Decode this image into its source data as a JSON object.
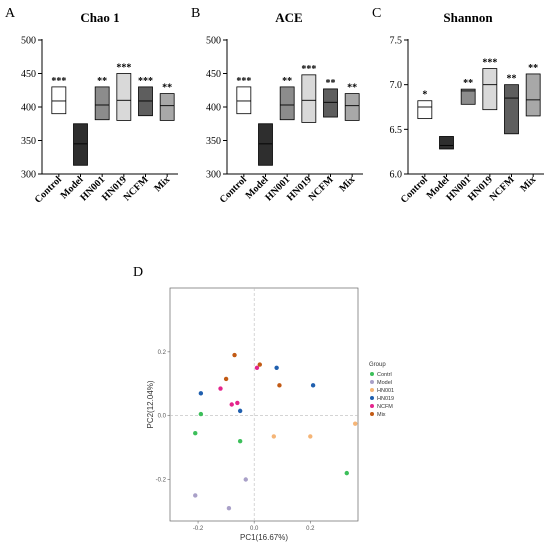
{
  "panel_labels": [
    "A",
    "B",
    "C",
    "D"
  ],
  "chart_data": [
    {
      "type": "box",
      "title": "Chao 1",
      "categories": [
        "Control",
        "Model",
        "HN001",
        "HN019",
        "NCFM",
        "Mix"
      ],
      "ylim": [
        300,
        500
      ],
      "yticks": [
        "300",
        "350",
        "400",
        "450",
        "500"
      ],
      "boxes": [
        {
          "low": 390,
          "median": 409,
          "high": 430,
          "fill": "#ffffff"
        },
        {
          "low": 313,
          "median": 345,
          "high": 375,
          "fill": "#2e2e2e"
        },
        {
          "low": 381,
          "median": 403,
          "high": 430,
          "fill": "#8c8c8c"
        },
        {
          "low": 380,
          "median": 410,
          "high": 450,
          "fill": "#d9d9d9"
        },
        {
          "low": 387,
          "median": 409,
          "high": 430,
          "fill": "#5e5e5e"
        },
        {
          "low": 380,
          "median": 402,
          "high": 420,
          "fill": "#a8a8a8"
        }
      ],
      "significance": [
        "***",
        "",
        "**",
        "***",
        "***",
        "**"
      ]
    },
    {
      "type": "box",
      "title": "ACE",
      "categories": [
        "Control",
        "Model",
        "HN001",
        "HN019",
        "NCFM",
        "Mix"
      ],
      "ylim": [
        300,
        500
      ],
      "yticks": [
        "300",
        "350",
        "400",
        "450",
        "500"
      ],
      "boxes": [
        {
          "low": 390,
          "median": 409,
          "high": 430,
          "fill": "#ffffff"
        },
        {
          "low": 313,
          "median": 345,
          "high": 375,
          "fill": "#2e2e2e"
        },
        {
          "low": 381,
          "median": 403,
          "high": 430,
          "fill": "#8c8c8c"
        },
        {
          "low": 377,
          "median": 410,
          "high": 448,
          "fill": "#d9d9d9"
        },
        {
          "low": 385,
          "median": 407,
          "high": 427,
          "fill": "#5e5e5e"
        },
        {
          "low": 380,
          "median": 402,
          "high": 420,
          "fill": "#a8a8a8"
        }
      ],
      "significance": [
        "***",
        "",
        "**",
        "***",
        "**",
        "**"
      ]
    },
    {
      "type": "box",
      "title": "Shannon",
      "categories": [
        "Control",
        "Model",
        "HN001",
        "HN019",
        "NCFM",
        "Mix"
      ],
      "ylim": [
        6.0,
        7.5
      ],
      "yticks": [
        "6.0",
        "6.5",
        "7.0",
        "7.5"
      ],
      "boxes": [
        {
          "low": 6.62,
          "median": 6.75,
          "high": 6.82,
          "fill": "#ffffff"
        },
        {
          "low": 6.28,
          "median": 6.32,
          "high": 6.42,
          "fill": "#2e2e2e"
        },
        {
          "low": 6.78,
          "median": 6.93,
          "high": 6.95,
          "fill": "#8c8c8c"
        },
        {
          "low": 6.72,
          "median": 7.0,
          "high": 7.18,
          "fill": "#d9d9d9"
        },
        {
          "low": 6.45,
          "median": 6.85,
          "high": 7.0,
          "fill": "#5e5e5e"
        },
        {
          "low": 6.65,
          "median": 6.83,
          "high": 7.12,
          "fill": "#a8a8a8"
        }
      ],
      "significance": [
        "*",
        "",
        "**",
        "***",
        "**",
        "**"
      ]
    },
    {
      "type": "scatter",
      "xlabel": "PC1(16.67%)",
      "ylabel": "PC2(12.04%)",
      "xlim": [
        -0.3,
        0.37
      ],
      "ylim": [
        -0.33,
        0.4
      ],
      "xticks": [
        {
          "v": -0.2,
          "label": "-0.2"
        },
        {
          "v": 0.0,
          "label": "0.0"
        },
        {
          "v": 0.2,
          "label": "0.2"
        }
      ],
      "yticks": [
        {
          "v": -0.2,
          "label": "-0.2"
        },
        {
          "v": 0.0,
          "label": "0.0"
        },
        {
          "v": 0.2,
          "label": "0.2"
        }
      ],
      "legend_title": "Group",
      "legend_position": "right",
      "groups": [
        {
          "name": "Contrl",
          "color": "#3cbf5a"
        },
        {
          "name": "Model",
          "color": "#a9a0c8"
        },
        {
          "name": "HN001",
          "color": "#f5b577"
        },
        {
          "name": "HN019",
          "color": "#1f5fae"
        },
        {
          "name": "NCFM",
          "color": "#e4248c"
        },
        {
          "name": "Mix",
          "color": "#c25a14"
        }
      ],
      "points": [
        {
          "g": 0,
          "x": -0.19,
          "y": 0.005
        },
        {
          "g": 0,
          "x": -0.21,
          "y": -0.055
        },
        {
          "g": 0,
          "x": -0.05,
          "y": -0.08
        },
        {
          "g": 0,
          "x": 0.33,
          "y": -0.18
        },
        {
          "g": 1,
          "x": -0.21,
          "y": -0.25
        },
        {
          "g": 1,
          "x": -0.09,
          "y": -0.29
        },
        {
          "g": 1,
          "x": -0.03,
          "y": -0.2
        },
        {
          "g": 2,
          "x": 0.07,
          "y": -0.065
        },
        {
          "g": 2,
          "x": 0.2,
          "y": -0.065
        },
        {
          "g": 2,
          "x": 0.36,
          "y": -0.025
        },
        {
          "g": 3,
          "x": -0.19,
          "y": 0.07
        },
        {
          "g": 3,
          "x": -0.05,
          "y": 0.015
        },
        {
          "g": 3,
          "x": 0.08,
          "y": 0.15
        },
        {
          "g": 3,
          "x": 0.21,
          "y": 0.095
        },
        {
          "g": 4,
          "x": -0.12,
          "y": 0.085
        },
        {
          "g": 4,
          "x": -0.08,
          "y": 0.035
        },
        {
          "g": 4,
          "x": -0.06,
          "y": 0.04
        },
        {
          "g": 4,
          "x": 0.01,
          "y": 0.15
        },
        {
          "g": 5,
          "x": -0.1,
          "y": 0.115
        },
        {
          "g": 5,
          "x": -0.07,
          "y": 0.19
        },
        {
          "g": 5,
          "x": 0.02,
          "y": 0.16
        },
        {
          "g": 5,
          "x": 0.09,
          "y": 0.095
        }
      ]
    }
  ]
}
